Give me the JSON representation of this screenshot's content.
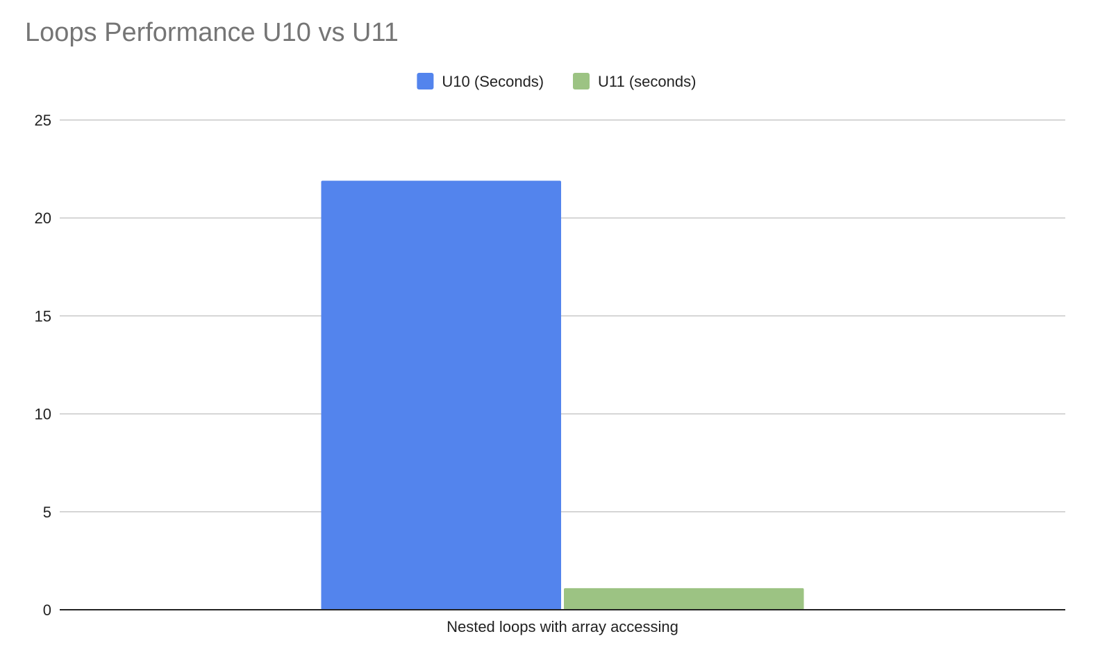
{
  "chart_data": {
    "type": "bar",
    "title": "Loops Performance U10 vs U11",
    "categories": [
      "Nested loops with array accessing"
    ],
    "series": [
      {
        "name": "U10 (Seconds)",
        "values": [
          21.9
        ],
        "color": "#5384ed"
      },
      {
        "name": "U11 (seconds)",
        "values": [
          1.1
        ],
        "color": "#9cc383"
      }
    ],
    "yticks": [
      0,
      5,
      10,
      15,
      20,
      25
    ],
    "ylim": [
      0,
      25
    ],
    "xlabel": "",
    "ylabel": "",
    "grid": true,
    "legend_position": "top-center"
  }
}
